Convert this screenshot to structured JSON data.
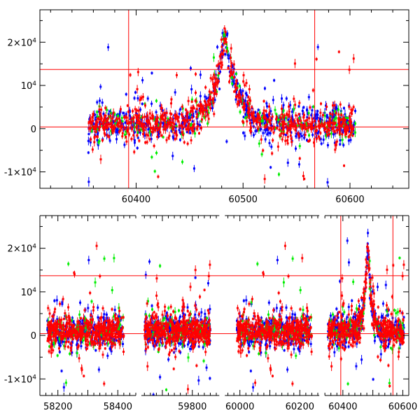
{
  "chart_data": [
    {
      "type": "scatter",
      "title": "",
      "xlabel": "",
      "ylabel": "",
      "xlim": [
        60310,
        60655
      ],
      "ylim": [
        -13800,
        27500
      ],
      "x_ticks": [
        60400,
        60500,
        60600
      ],
      "x_tick_labels": [
        "60400",
        "60500",
        "60600"
      ],
      "y_ticks": [
        -10000,
        0,
        10000,
        20000
      ],
      "y_tick_labels": [
        {
          "prefix": "-1×10",
          "exp": "4"
        },
        {
          "prefix": "0",
          "exp": ""
        },
        {
          "prefix": "10",
          "exp": "4"
        },
        {
          "prefix": "2×10",
          "exp": "4"
        }
      ],
      "horizontal_lines": [
        400,
        13700
      ],
      "vertical_lines": [
        60393,
        60567
      ],
      "series": [
        {
          "color": "#0000ff",
          "peak_x": 60483
        },
        {
          "color": "#00ee00",
          "peak_x": 60483
        },
        {
          "color": "#ff0000",
          "peak_x": 60483
        }
      ]
    },
    {
      "type": "scatter",
      "title": "",
      "xlabel": "",
      "ylabel": "",
      "y_ticks": [
        -10000,
        0,
        10000,
        20000
      ],
      "y_tick_labels": [
        {
          "prefix": "-1×10",
          "exp": "4"
        },
        {
          "prefix": "0",
          "exp": ""
        },
        {
          "prefix": "10",
          "exp": "4"
        },
        {
          "prefix": "2×10",
          "exp": "4"
        }
      ],
      "ylim": [
        -13800,
        27500
      ],
      "horizontal_lines": [
        400,
        13700
      ],
      "segments": [
        {
          "xlim": [
            58140,
            58460
          ],
          "data_range": [
            58165,
            58420
          ],
          "x_ticks": [
            58200,
            58300,
            58400
          ],
          "x_tick_labels": [
            "58200",
            "",
            "58400"
          ]
        },
        {
          "xlim": [
            59630,
            59890
          ],
          "data_range": [
            59640,
            59860
          ],
          "x_ticks": [
            59800
          ],
          "x_tick_labels": [
            "59800"
          ]
        },
        {
          "xlim": [
            59950,
            60265
          ],
          "data_range": [
            59990,
            60240
          ],
          "x_ticks": [
            60000,
            60100,
            60200
          ],
          "x_tick_labels": [
            "60000",
            "",
            "60200"
          ]
        },
        {
          "xlim": [
            60340,
            60620
          ],
          "data_range": [
            60350,
            60605
          ],
          "x_ticks": [
            60400,
            60500,
            60600
          ],
          "x_tick_labels": [
            "60400",
            "",
            "60600"
          ],
          "peak_x": 60483,
          "vertical_lines": [
            60393,
            60567
          ]
        }
      ],
      "series": [
        {
          "color": "#0000ff"
        },
        {
          "color": "#00ee00"
        },
        {
          "color": "#ff0000"
        }
      ]
    }
  ]
}
